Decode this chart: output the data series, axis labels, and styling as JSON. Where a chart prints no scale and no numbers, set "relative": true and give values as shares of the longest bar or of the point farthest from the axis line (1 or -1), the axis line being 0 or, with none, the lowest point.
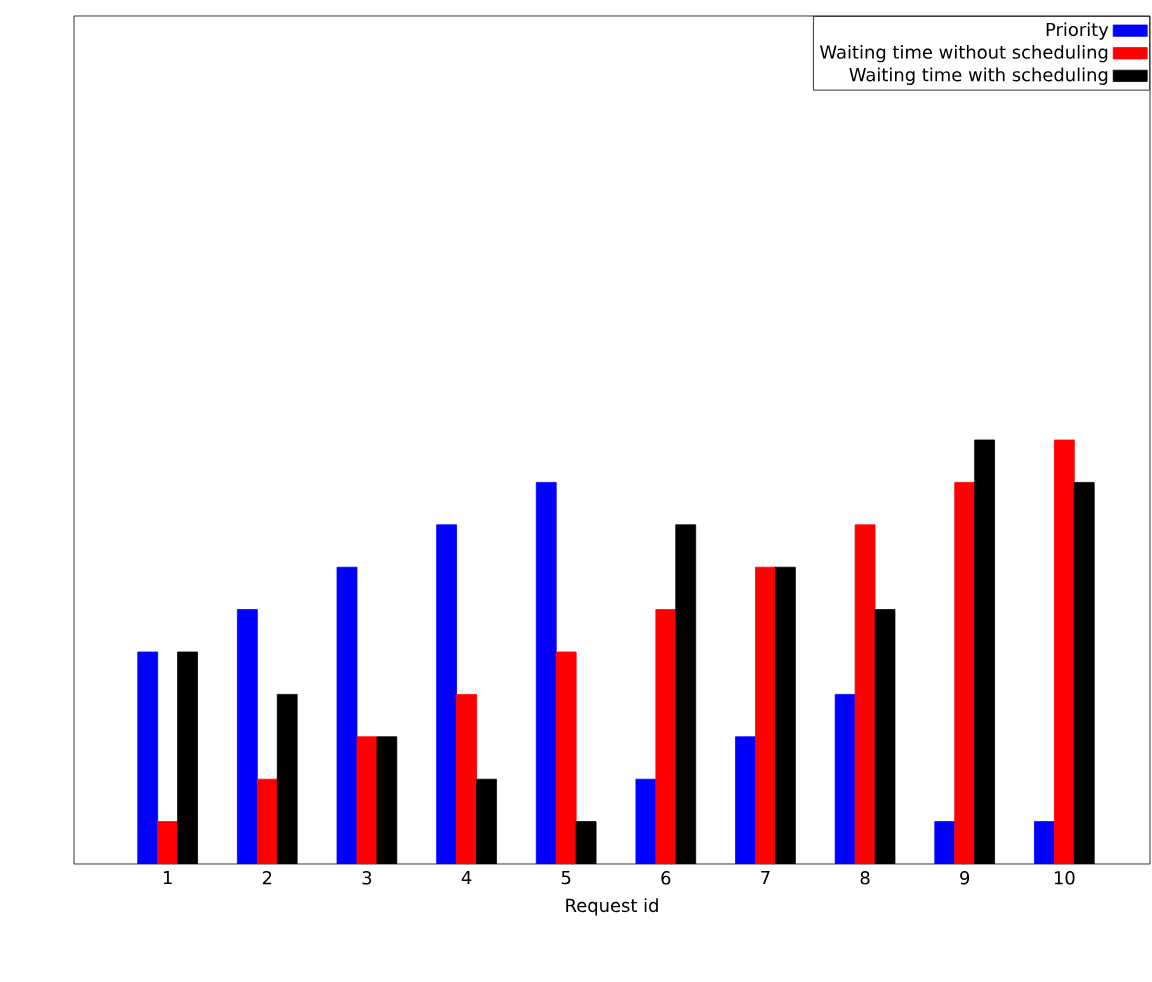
{
  "chart_data": {
    "type": "bar",
    "relative": true,
    "xlabel": "Request id",
    "categories": [
      "1",
      "2",
      "3",
      "4",
      "5",
      "6",
      "7",
      "8",
      "9",
      "10"
    ],
    "series": [
      {
        "name": "Priority",
        "color": "#0000ff",
        "values": [
          0.5,
          0.6,
          0.7,
          0.8,
          0.9,
          0.2,
          0.3,
          0.4,
          0.1,
          0.1
        ]
      },
      {
        "name": "Waiting time without scheduling",
        "color": "#ff0000",
        "values": [
          0.1,
          0.2,
          0.3,
          0.4,
          0.5,
          0.6,
          0.7,
          0.8,
          0.9,
          1.0
        ]
      },
      {
        "name": "Waiting time with scheduling",
        "color": "#000000",
        "values": [
          0.5,
          0.4,
          0.3,
          0.2,
          0.1,
          0.8,
          0.7,
          0.6,
          1.0,
          0.9
        ]
      }
    ],
    "legend": "top right",
    "tick_labels": "x",
    "grid": false
  }
}
